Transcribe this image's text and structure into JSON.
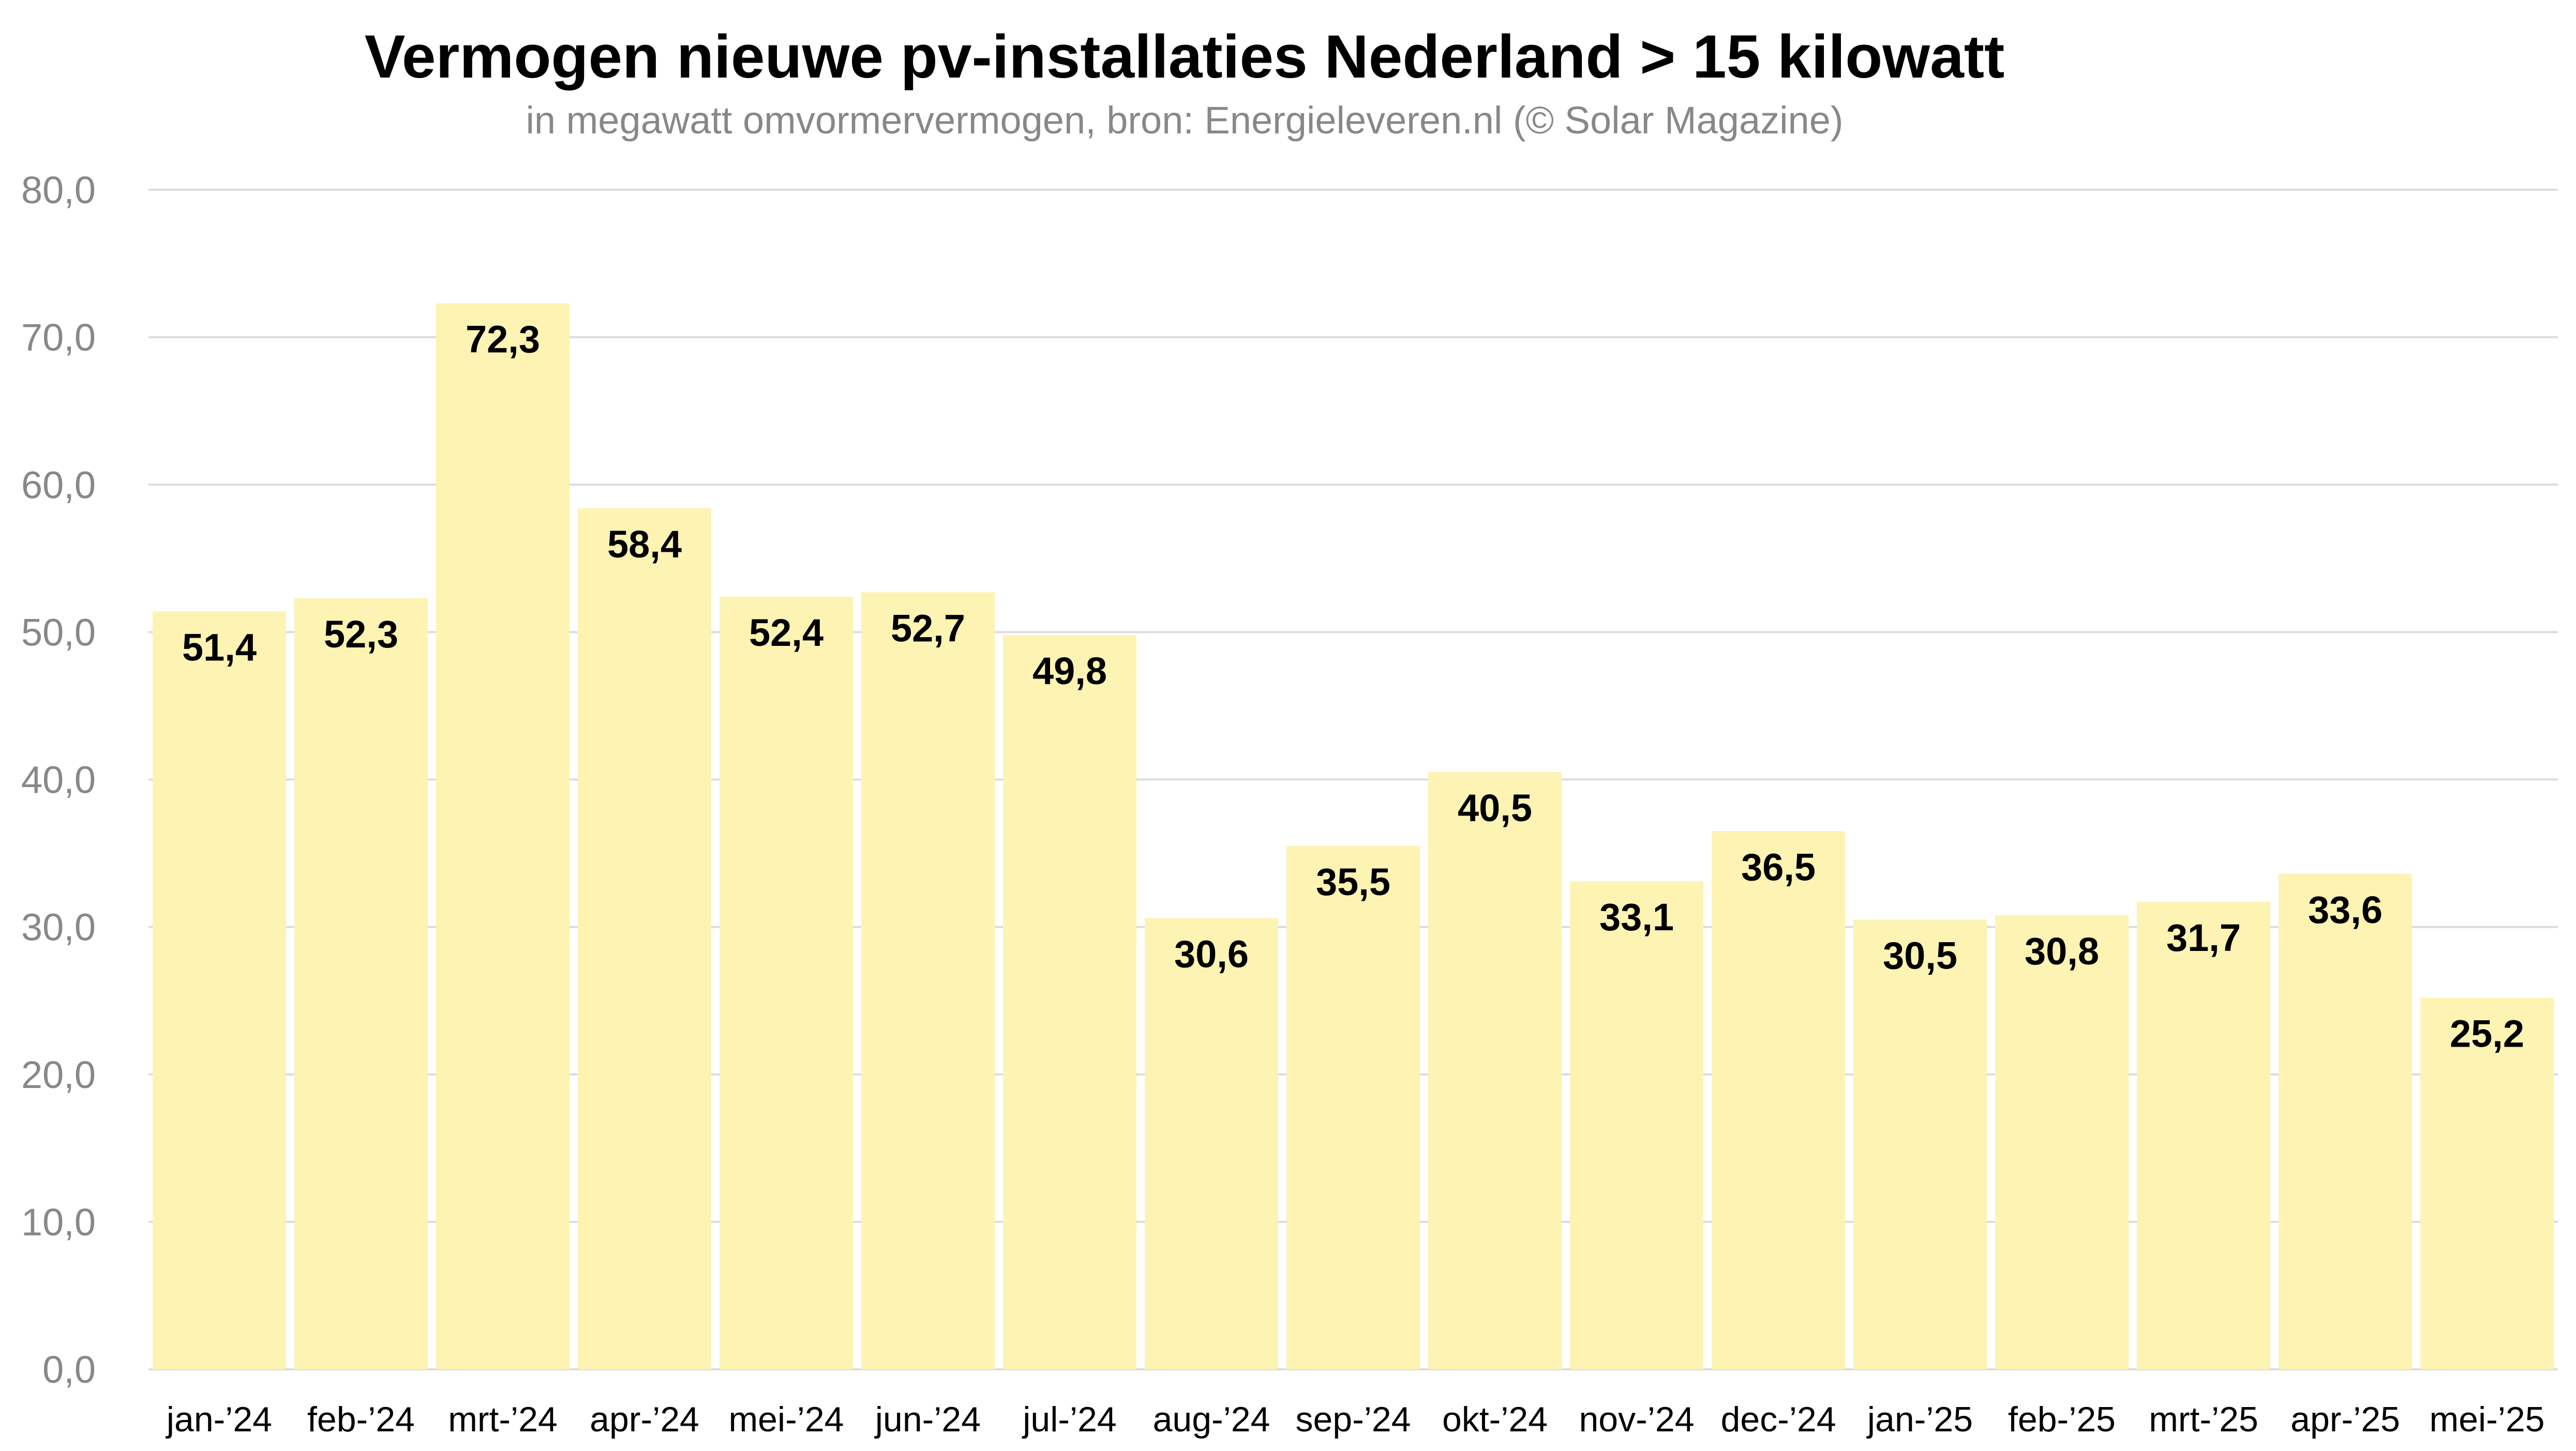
{
  "chart_data": {
    "type": "bar",
    "title": "Vermogen nieuwe pv-installaties Nederland > 15 kilowatt",
    "subtitle": "in megawatt omvormervermogen, bron: Energieleveren.nl (© Solar Magazine)",
    "xlabel": "",
    "ylabel": "",
    "ylim": [
      0,
      80
    ],
    "yticks": [
      "0,0",
      "10,0",
      "20,0",
      "30,0",
      "40,0",
      "50,0",
      "60,0",
      "70,0",
      "80,0"
    ],
    "grid": true,
    "categories": [
      "jan-'24",
      "feb-'24",
      "mrt-'24",
      "apr-'24",
      "mei-'24",
      "jun-'24",
      "jul-'24",
      "aug-'24",
      "sep-'24",
      "okt-'24",
      "nov-'24",
      "dec-'24",
      "jan-'25",
      "feb-'25",
      "mrt-'25",
      "apr-'25",
      "mei-'25"
    ],
    "values": [
      51.4,
      52.3,
      72.3,
      58.4,
      52.4,
      52.7,
      49.8,
      30.6,
      35.5,
      40.5,
      33.1,
      36.5,
      30.5,
      30.8,
      31.7,
      33.6,
      25.2
    ],
    "data_labels": [
      "51,4",
      "52,3",
      "72,3",
      "58,4",
      "52,4",
      "52,7",
      "49,8",
      "30,6",
      "35,5",
      "40,5",
      "33,1",
      "36,5",
      "30,5",
      "30,8",
      "31,7",
      "33,6",
      "25,2"
    ],
    "colors": {
      "bar": "#fdf3b3",
      "grid": "#dcdcdc"
    }
  }
}
